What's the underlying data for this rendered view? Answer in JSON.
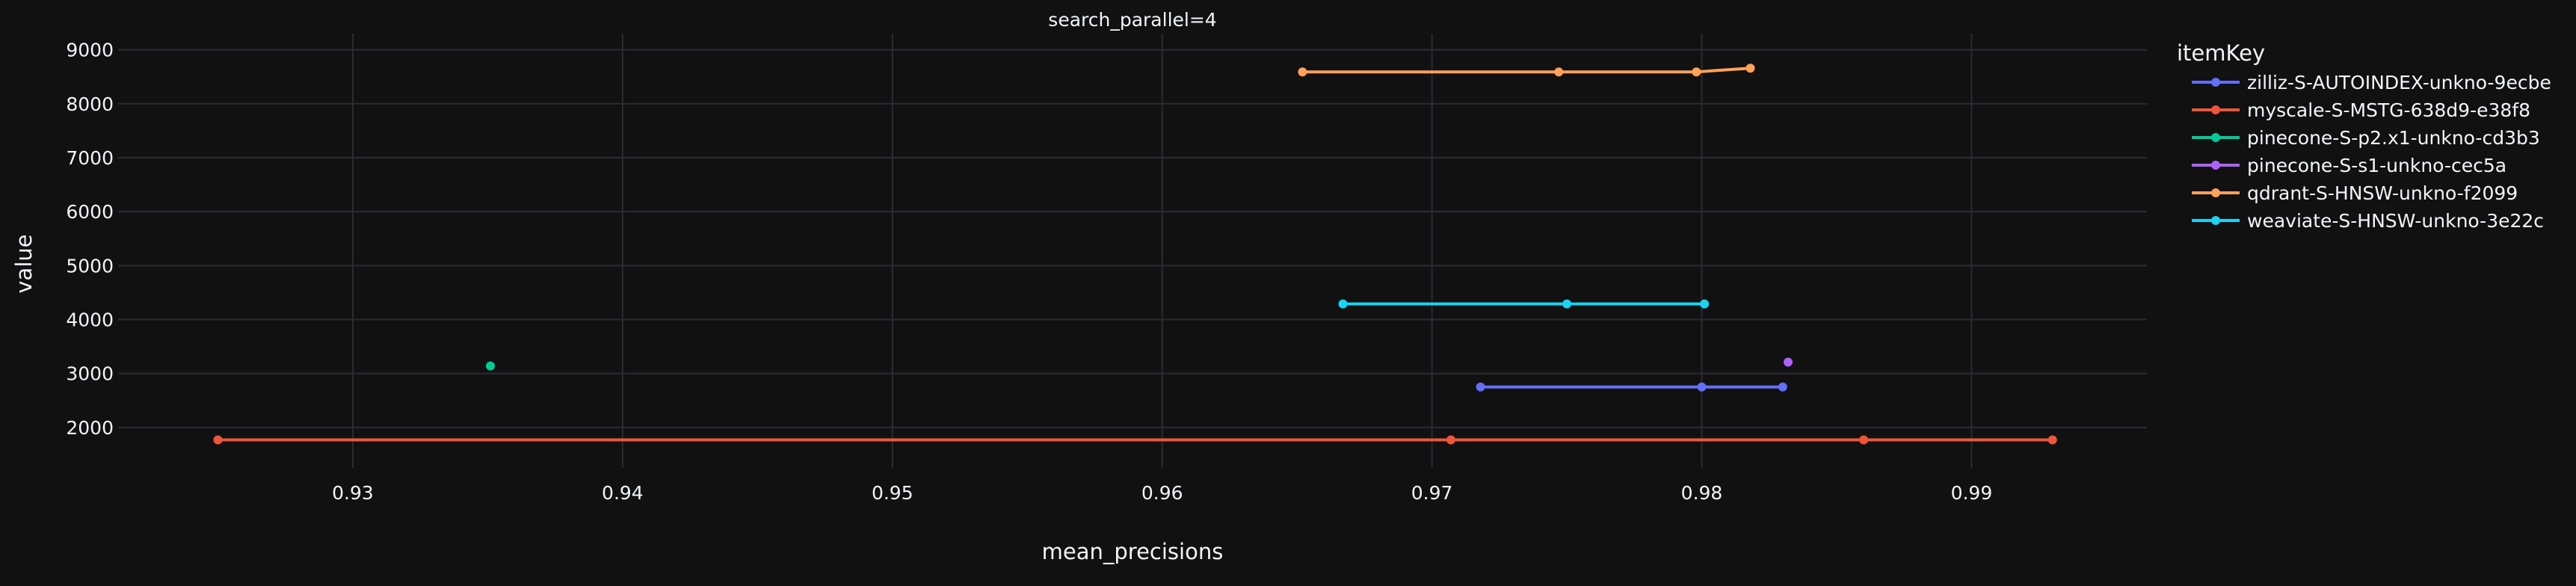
{
  "chart_data": {
    "type": "line",
    "title": "search_parallel=4",
    "xlabel": "mean_precisions",
    "ylabel": "value",
    "xlim": [
      0.9213,
      0.9965
    ],
    "ylim": [
      1250,
      9300
    ],
    "x_ticks": [
      "0.93",
      "0.94",
      "0.95",
      "0.96",
      "0.97",
      "0.98",
      "0.99"
    ],
    "x_tick_values": [
      0.93,
      0.94,
      0.95,
      0.96,
      0.97,
      0.98,
      0.99
    ],
    "y_ticks": [
      "2000",
      "3000",
      "4000",
      "5000",
      "6000",
      "7000",
      "8000",
      "9000"
    ],
    "y_tick_values": [
      2000,
      3000,
      4000,
      5000,
      6000,
      7000,
      8000,
      9000
    ],
    "grid": true,
    "background": "#111111",
    "grid_color": "#2a2c36",
    "legend": {
      "title": "itemKey",
      "placement": "right"
    },
    "series": [
      {
        "name": "zilliz-S-AUTOINDEX-unkno-9ecbe",
        "color": "#636efa",
        "points": [
          [
            0.9718,
            2750
          ],
          [
            0.98,
            2750
          ],
          [
            0.983,
            2750
          ]
        ]
      },
      {
        "name": "myscale-S-MSTG-638d9-e38f8",
        "color": "#ef553b",
        "points": [
          [
            0.925,
            1770
          ],
          [
            0.9707,
            1770
          ],
          [
            0.986,
            1770
          ],
          [
            0.993,
            1770
          ]
        ]
      },
      {
        "name": "pinecone-S-p2.x1-unkno-cd3b3",
        "color": "#00cc96",
        "points": [
          [
            0.9351,
            3140
          ]
        ]
      },
      {
        "name": "pinecone-S-s1-unkno-cec5a",
        "color": "#ab63fa",
        "points": [
          [
            0.9832,
            3210
          ]
        ]
      },
      {
        "name": "qdrant-S-HNSW-unkno-f2099",
        "color": "#ffa15a",
        "points": [
          [
            0.9652,
            8590
          ],
          [
            0.9747,
            8590
          ],
          [
            0.9798,
            8590
          ],
          [
            0.9818,
            8660
          ]
        ]
      },
      {
        "name": "weaviate-S-HNSW-unkno-3e22c",
        "color": "#19d3f3",
        "points": [
          [
            0.9667,
            4290
          ],
          [
            0.975,
            4290
          ],
          [
            0.9801,
            4290
          ]
        ]
      }
    ]
  }
}
